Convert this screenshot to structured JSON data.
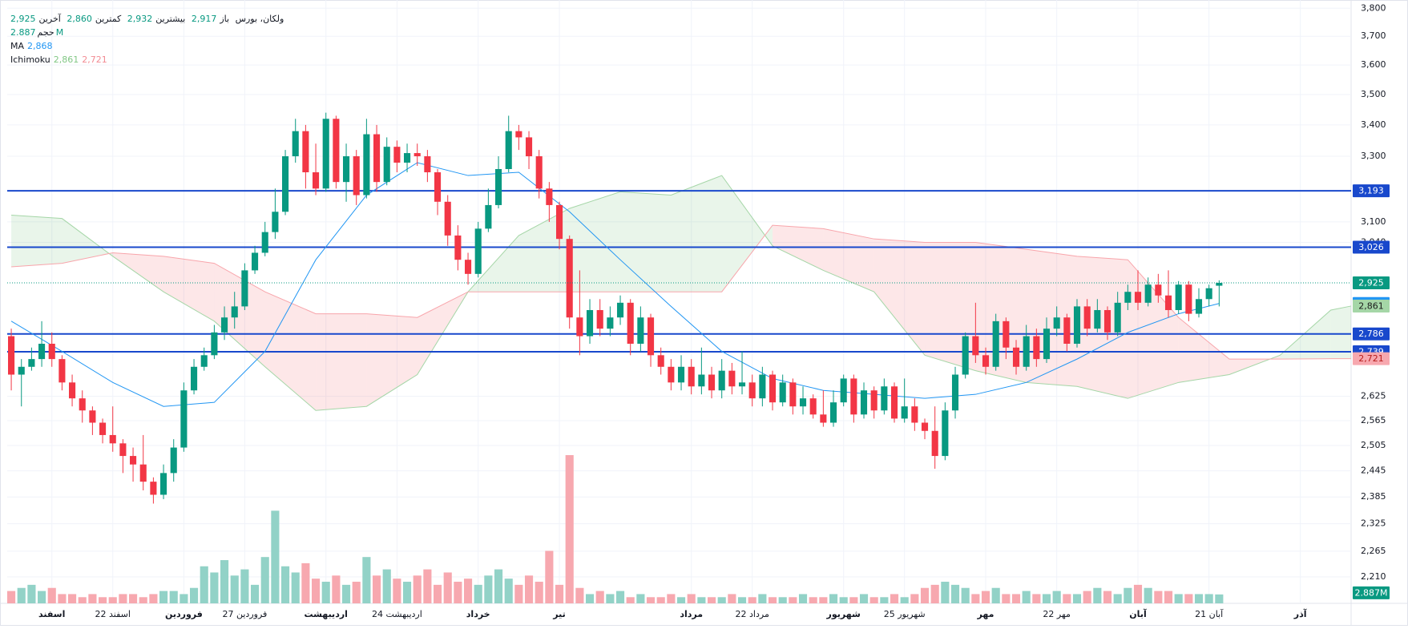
{
  "chart_data": {
    "type": "candlestick",
    "legend": {
      "symbol": "ولکان، بورس",
      "items": [
        {
          "label": "باز",
          "value": "2,917"
        },
        {
          "label": "بیشترین",
          "value": "2,932"
        },
        {
          "label": "کمترین",
          "value": "2,860"
        },
        {
          "label": "آخرین",
          "value": "2,925"
        }
      ],
      "volume_label": "حجم",
      "volume_value": "2.887M",
      "ma_label": "MA",
      "ma_value": "2,868",
      "ichimoku_label": "Ichimoku",
      "ichimoku_values": [
        "2,861",
        "2,721"
      ]
    },
    "candles": {
      "open": [
        2780,
        2680,
        2700,
        2720,
        2760,
        2720,
        2660,
        2620,
        2590,
        2560,
        2530,
        2510,
        2480,
        2460,
        2420,
        2390,
        2440,
        2500,
        2640,
        2700,
        2730,
        2790,
        2830,
        2860,
        2960,
        3010,
        3070,
        3130,
        3300,
        3380,
        3250,
        3200,
        3420,
        3220,
        3300,
        3180,
        3370,
        3220,
        3330,
        3280,
        3310,
        3300,
        3250,
        3160,
        3060,
        2990,
        2950,
        3080,
        3150,
        3260,
        3380,
        3360,
        3300,
        3200,
        3150,
        3050,
        2830,
        2780,
        2850,
        2800,
        2830,
        2870,
        2760,
        2830,
        2730,
        2700,
        2660,
        2700,
        2650,
        2680,
        2640,
        2690,
        2650,
        2660,
        2620,
        2680,
        2610,
        2660,
        2600,
        2620,
        2580,
        2560,
        2610,
        2670,
        2580,
        2640,
        2590,
        2650,
        2570,
        2600,
        2560,
        2540,
        2480,
        2590,
        2680,
        2780,
        2730,
        2700,
        2820,
        2750,
        2700,
        2780,
        2720,
        2800,
        2830,
        2760,
        2860,
        2800,
        2850,
        2790,
        2870,
        2900,
        2870,
        2920,
        2890,
        2850,
        2920,
        2840,
        2880,
        2917
      ],
      "high": [
        2800,
        2720,
        2750,
        2820,
        2790,
        2730,
        2680,
        2640,
        2600,
        2570,
        2600,
        2520,
        2500,
        2530,
        2430,
        2460,
        2520,
        2660,
        2720,
        2750,
        2810,
        2860,
        2900,
        2980,
        3030,
        3100,
        3200,
        3320,
        3420,
        3400,
        3340,
        3440,
        3430,
        3340,
        3320,
        3420,
        3400,
        3360,
        3350,
        3340,
        3340,
        3320,
        3260,
        3180,
        3090,
        3010,
        3100,
        3200,
        3300,
        3430,
        3400,
        3380,
        3320,
        3220,
        3160,
        3060,
        2960,
        2880,
        2880,
        2860,
        2890,
        2880,
        2860,
        2840,
        2750,
        2720,
        2730,
        2720,
        2750,
        2700,
        2720,
        2710,
        2740,
        2680,
        2700,
        2690,
        2680,
        2670,
        2650,
        2630,
        2640,
        2640,
        2680,
        2680,
        2660,
        2650,
        2670,
        2660,
        2670,
        2620,
        2570,
        2600,
        2610,
        2700,
        2790,
        2870,
        2750,
        2840,
        2830,
        2770,
        2810,
        2800,
        2830,
        2860,
        2840,
        2880,
        2880,
        2880,
        2860,
        2900,
        2920,
        2960,
        2940,
        2950,
        2960,
        2930,
        2930,
        2910,
        2920,
        2932
      ],
      "low": [
        2640,
        2600,
        2690,
        2700,
        2700,
        2640,
        2600,
        2560,
        2530,
        2510,
        2490,
        2440,
        2420,
        2400,
        2370,
        2380,
        2420,
        2490,
        2630,
        2690,
        2720,
        2770,
        2800,
        2850,
        2950,
        3000,
        3050,
        3120,
        3280,
        3200,
        3180,
        3190,
        3200,
        3160,
        3150,
        3170,
        3190,
        3210,
        3250,
        3250,
        3270,
        3220,
        3120,
        3030,
        2960,
        2920,
        2940,
        3070,
        3140,
        3250,
        3320,
        3260,
        3170,
        3100,
        3020,
        2800,
        2730,
        2760,
        2780,
        2780,
        2810,
        2730,
        2740,
        2700,
        2680,
        2640,
        2640,
        2630,
        2630,
        2620,
        2620,
        2630,
        2630,
        2600,
        2600,
        2590,
        2600,
        2580,
        2580,
        2570,
        2550,
        2550,
        2600,
        2560,
        2570,
        2570,
        2580,
        2560,
        2560,
        2540,
        2520,
        2450,
        2470,
        2570,
        2670,
        2710,
        2680,
        2690,
        2720,
        2680,
        2690,
        2700,
        2710,
        2780,
        2740,
        2750,
        2780,
        2790,
        2770,
        2780,
        2850,
        2850,
        2860,
        2870,
        2830,
        2840,
        2820,
        2830,
        2860,
        2860
      ],
      "close": [
        2680,
        2700,
        2720,
        2760,
        2720,
        2660,
        2620,
        2590,
        2560,
        2530,
        2510,
        2480,
        2460,
        2420,
        2390,
        2440,
        2500,
        2640,
        2700,
        2730,
        2790,
        2830,
        2860,
        2960,
        3010,
        3070,
        3130,
        3300,
        3380,
        3250,
        3200,
        3420,
        3220,
        3300,
        3180,
        3370,
        3220,
        3330,
        3280,
        3310,
        3300,
        3250,
        3160,
        3060,
        2990,
        2950,
        3080,
        3150,
        3260,
        3380,
        3360,
        3300,
        3200,
        3150,
        3050,
        2830,
        2780,
        2850,
        2800,
        2830,
        2870,
        2760,
        2830,
        2730,
        2700,
        2660,
        2700,
        2650,
        2680,
        2640,
        2690,
        2650,
        2660,
        2620,
        2680,
        2610,
        2660,
        2600,
        2620,
        2580,
        2560,
        2610,
        2670,
        2580,
        2640,
        2590,
        2650,
        2570,
        2600,
        2560,
        2540,
        2480,
        2590,
        2680,
        2780,
        2730,
        2700,
        2820,
        2750,
        2700,
        2780,
        2720,
        2800,
        2830,
        2760,
        2860,
        2800,
        2850,
        2790,
        2870,
        2900,
        2870,
        2920,
        2890,
        2850,
        2920,
        2840,
        2880,
        2910,
        2925
      ],
      "volume": [
        4000000,
        5000000,
        6000000,
        4000000,
        5000000,
        3000000,
        3000000,
        2000000,
        3000000,
        2000000,
        2000000,
        3000000,
        3000000,
        2000000,
        3000000,
        4000000,
        4000000,
        3000000,
        5000000,
        12000000,
        10000000,
        14000000,
        9000000,
        11000000,
        6000000,
        15000000,
        30000000,
        12000000,
        10000000,
        13000000,
        8000000,
        7000000,
        9000000,
        6000000,
        7000000,
        15000000,
        9000000,
        11000000,
        8000000,
        7000000,
        9000000,
        11000000,
        6000000,
        10000000,
        7000000,
        8000000,
        6000000,
        9000000,
        11000000,
        8000000,
        6000000,
        9000000,
        7000000,
        17000000,
        6000000,
        48000000,
        5000000,
        3000000,
        4000000,
        3000000,
        4000000,
        2000000,
        3000000,
        2000000,
        2000000,
        3000000,
        2000000,
        3000000,
        2000000,
        2000000,
        2000000,
        3000000,
        2000000,
        2000000,
        3000000,
        2000000,
        2000000,
        2000000,
        3000000,
        2000000,
        2000000,
        3000000,
        2000000,
        2000000,
        3000000,
        2000000,
        2000000,
        3000000,
        2000000,
        3000000,
        5000000,
        6000000,
        7000000,
        6000000,
        5000000,
        3000000,
        4000000,
        5000000,
        3000000,
        3000000,
        4000000,
        3000000,
        3000000,
        4000000,
        3000000,
        3000000,
        4000000,
        5000000,
        4000000,
        3000000,
        5000000,
        6000000,
        5000000,
        4000000,
        4000000,
        3000000,
        3000000,
        3000000,
        3000000,
        2887000
      ]
    },
    "colors": {
      "up": "#089981",
      "down": "#f23645",
      "volume_up": "#92d2c7",
      "volume_down": "#f7a8af"
    },
    "xlim": [
      -0.4,
      132
    ],
    "xticks": [
      {
        "value": 4,
        "label": "اسفند"
      },
      {
        "value": 10,
        "label": "22 اسفند"
      },
      {
        "value": 17,
        "label": "فروردین"
      },
      {
        "value": 23,
        "label": "27 فروردین"
      },
      {
        "value": 31,
        "label": "اردیبهشت"
      },
      {
        "value": 38,
        "label": "24 اردیبهشت"
      },
      {
        "value": 46,
        "label": "خرداد"
      },
      {
        "value": 54,
        "label": "تیر"
      },
      {
        "value": 67,
        "label": "مرداد"
      },
      {
        "value": 73,
        "label": "22 مرداد"
      },
      {
        "value": 82,
        "label": "شهریور"
      },
      {
        "value": 88,
        "label": "25 شهریور"
      },
      {
        "value": 96,
        "label": "مهر"
      },
      {
        "value": 103,
        "label": "22 مهر"
      },
      {
        "value": 111,
        "label": "آبان"
      },
      {
        "value": 118,
        "label": "21 آبان"
      },
      {
        "value": 127,
        "label": "آذر"
      }
    ],
    "ylim": [
      2155,
      3830
    ],
    "log_scale": true,
    "yticks": [
      {
        "value": 3800,
        "label": "3,800"
      },
      {
        "value": 3700,
        "label": "3,700"
      },
      {
        "value": 3600,
        "label": "3,600"
      },
      {
        "value": 3500,
        "label": "3,500"
      },
      {
        "value": 3400,
        "label": "3,400"
      },
      {
        "value": 3300,
        "label": "3,300"
      },
      {
        "value": 3100,
        "label": "3,100"
      },
      {
        "value": 3040,
        "label": "3,040"
      },
      {
        "value": 2625,
        "label": "2,625"
      },
      {
        "value": 2565,
        "label": "2,565"
      },
      {
        "value": 2505,
        "label": "2,505"
      },
      {
        "value": 2445,
        "label": "2,445"
      },
      {
        "value": 2385,
        "label": "2,385"
      },
      {
        "value": 2325,
        "label": "2,325"
      },
      {
        "value": 2265,
        "label": "2,265"
      },
      {
        "value": 2210,
        "label": "2,210"
      }
    ],
    "grid": true,
    "vlim": [
      0,
      55000000
    ],
    "ma": {
      "color": "#2196f3",
      "x": [
        0,
        5,
        10,
        15,
        20,
        25,
        30,
        35,
        40,
        45,
        50,
        55,
        60,
        65,
        70,
        75,
        80,
        85,
        90,
        95,
        100,
        105,
        110,
        115,
        119
      ],
      "values": [
        2820,
        2740,
        2660,
        2600,
        2610,
        2740,
        2990,
        3180,
        3280,
        3240,
        3250,
        3130,
        2990,
        2860,
        2740,
        2670,
        2640,
        2630,
        2620,
        2630,
        2660,
        2720,
        2790,
        2840,
        2868
      ]
    },
    "ichimoku": {
      "color_a": "#a5d6a7",
      "color_b": "#f8a5ab",
      "fill_up": "rgba(76,175,80,0.12)",
      "fill_down": "rgba(242,54,69,0.12)",
      "x": [
        0,
        5,
        10,
        15,
        20,
        25,
        30,
        35,
        40,
        45,
        50,
        55,
        60,
        65,
        70,
        75,
        80,
        85,
        90,
        95,
        100,
        105,
        110,
        115,
        120,
        125,
        130,
        132
      ],
      "span_a": [
        3120,
        3110,
        3000,
        2900,
        2820,
        2700,
        2590,
        2600,
        2680,
        2900,
        3060,
        3140,
        3190,
        3180,
        3240,
        3030,
        2960,
        2900,
        2730,
        2690,
        2660,
        2650,
        2620,
        2660,
        2680,
        2730,
        2850,
        2861
      ],
      "span_b": [
        2970,
        2980,
        3010,
        3000,
        2980,
        2900,
        2840,
        2840,
        2830,
        2900,
        2900,
        2900,
        2900,
        2900,
        2900,
        3090,
        3080,
        3050,
        3040,
        3040,
        3020,
        3000,
        2990,
        2830,
        2720,
        2720,
        2721,
        2721
      ]
    },
    "levels": [
      {
        "value": 3193,
        "label": "3,193",
        "color": "#1848cc"
      },
      {
        "value": 3026,
        "label": "3,026",
        "color": "#1848cc"
      },
      {
        "value": 2786,
        "label": "2,786",
        "color": "#1848cc"
      },
      {
        "value": 2739,
        "label": "2,739",
        "color": "#1848cc"
      }
    ],
    "price_labels": [
      {
        "value": 2925,
        "label": "2,925",
        "color": "#089981",
        "text_color": "#ffffff",
        "line_style": "dotted"
      },
      {
        "value": 2868,
        "label": "2,868",
        "color": "#2196f3",
        "text_color": "#ffffff"
      },
      {
        "value": 2861,
        "label": "2,861",
        "color": "#a5d6a7",
        "text_color": "#1b1b1b"
      },
      {
        "value": 2721,
        "label": "2,721",
        "color": "#f7a8af",
        "text_color": "#b71c1c"
      }
    ],
    "volume_label": {
      "value": 2887000,
      "label": "2.887M",
      "color": "#089981",
      "text_color": "#ffffff"
    }
  }
}
